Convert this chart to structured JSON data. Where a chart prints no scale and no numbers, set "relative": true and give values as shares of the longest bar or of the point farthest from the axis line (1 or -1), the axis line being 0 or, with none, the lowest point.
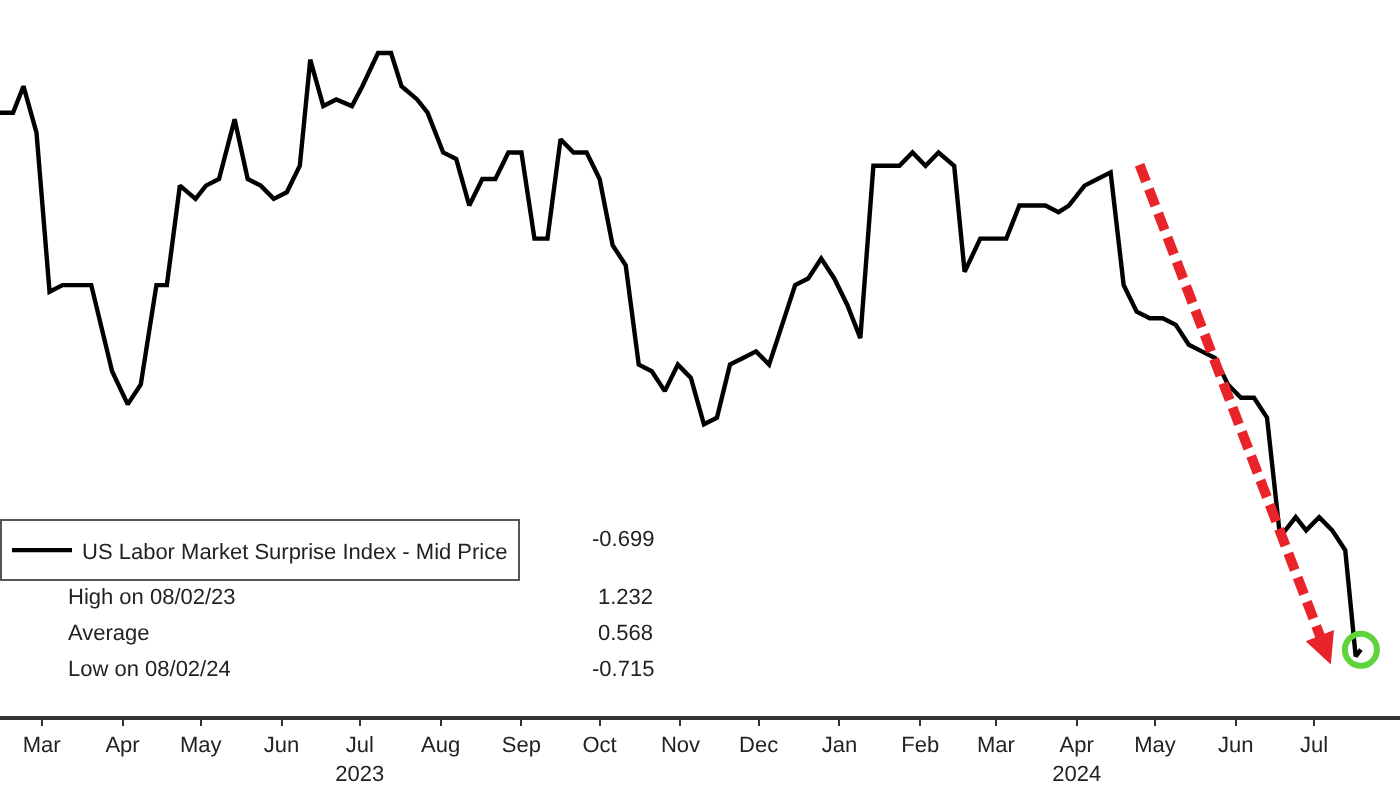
{
  "chart_data": {
    "type": "line",
    "relative": true,
    "legend": "bottom left",
    "line_style": "solid",
    "marker": "none",
    "xlim": [
      "2023-02-27",
      "2024-08-17"
    ],
    "xticks": [
      {
        "value": "2023-03-15",
        "label": "Mar"
      },
      {
        "value": "2023-04-15",
        "label": "Apr"
      },
      {
        "value": "2023-05-15",
        "label": "May"
      },
      {
        "value": "2023-06-15",
        "label": "Jun"
      },
      {
        "value": "2023-07-15",
        "label": "Jul\n2023"
      },
      {
        "value": "2023-08-15",
        "label": "Aug"
      },
      {
        "value": "2023-09-15",
        "label": "Sep"
      },
      {
        "value": "2023-10-15",
        "label": "Oct"
      },
      {
        "value": "2023-11-15",
        "label": "Nov"
      },
      {
        "value": "2023-12-15",
        "label": "Dec"
      },
      {
        "value": "2024-01-15",
        "label": "Jan"
      },
      {
        "value": "2024-02-15",
        "label": "Feb"
      },
      {
        "value": "2024-03-15",
        "label": "Mar"
      },
      {
        "value": "2024-04-15",
        "label": "Apr\n2024"
      },
      {
        "value": "2024-05-15",
        "label": "May"
      },
      {
        "value": "2024-06-15",
        "label": "Jun"
      },
      {
        "value": "2024-07-15",
        "label": "Jul"
      }
    ],
    "annotations": [
      "-0.699",
      "High on 08/02/23",
      "1.232",
      "Average",
      "0.568",
      "Low on 08/02/24",
      "-0.715"
    ],
    "series": [
      {
        "name": "US Labor Market Surprise Index - Mid Price",
        "color": "#000000",
        "x": [
          "2023-02-27",
          "2023-03-04",
          "2023-03-08",
          "2023-03-13",
          "2023-03-18",
          "2023-03-23",
          "2023-04-03",
          "2023-04-11",
          "2023-04-17",
          "2023-04-22",
          "2023-04-28",
          "2023-05-02",
          "2023-05-07",
          "2023-05-13",
          "2023-05-17",
          "2023-05-22",
          "2023-05-28",
          "2023-06-02",
          "2023-06-07",
          "2023-06-12",
          "2023-06-17",
          "2023-06-22",
          "2023-06-26",
          "2023-07-01",
          "2023-07-06",
          "2023-07-12",
          "2023-07-16",
          "2023-07-22",
          "2023-07-27",
          "2023-07-31",
          "2023-08-06",
          "2023-08-10",
          "2023-08-16",
          "2023-08-21",
          "2023-08-26",
          "2023-08-31",
          "2023-09-05",
          "2023-09-10",
          "2023-09-15",
          "2023-09-20",
          "2023-09-25",
          "2023-09-30",
          "2023-10-05",
          "2023-10-10",
          "2023-10-15",
          "2023-10-20",
          "2023-10-25",
          "2023-10-30",
          "2023-11-04",
          "2023-11-09",
          "2023-11-14",
          "2023-11-19",
          "2023-11-24",
          "2023-11-29",
          "2023-12-04",
          "2023-12-09",
          "2023-12-14",
          "2023-12-19",
          "2023-12-24",
          "2023-12-29",
          "2024-01-03",
          "2024-01-08",
          "2024-01-13",
          "2024-01-18",
          "2024-01-23",
          "2024-01-28",
          "2024-02-02",
          "2024-02-07",
          "2024-02-12",
          "2024-02-17",
          "2024-02-22",
          "2024-02-28",
          "2024-03-03",
          "2024-03-09",
          "2024-03-14",
          "2024-03-19",
          "2024-03-24",
          "2024-03-29",
          "2024-04-03",
          "2024-04-08",
          "2024-04-12",
          "2024-04-18",
          "2024-04-23",
          "2024-04-28",
          "2024-05-03",
          "2024-05-08",
          "2024-05-13",
          "2024-05-18",
          "2024-05-23",
          "2024-05-28",
          "2024-06-02",
          "2024-06-07",
          "2024-06-12",
          "2024-06-17",
          "2024-06-22",
          "2024-06-27",
          "2024-07-02",
          "2024-07-08",
          "2024-07-12",
          "2024-07-17",
          "2024-07-22",
          "2024-07-27",
          "2024-07-31",
          "2024-08-02"
        ],
        "values": [
          0.91,
          0.91,
          0.95,
          0.88,
          0.64,
          0.65,
          0.65,
          0.52,
          0.47,
          0.5,
          0.65,
          0.65,
          0.8,
          0.78,
          0.8,
          0.81,
          0.9,
          0.81,
          0.8,
          0.78,
          0.79,
          0.83,
          0.99,
          0.92,
          0.93,
          0.92,
          0.95,
          1.0,
          1.0,
          0.95,
          0.93,
          0.91,
          0.85,
          0.84,
          0.77,
          0.81,
          0.81,
          0.85,
          0.85,
          0.72,
          0.72,
          0.87,
          0.85,
          0.85,
          0.81,
          0.71,
          0.68,
          0.53,
          0.52,
          0.49,
          0.53,
          0.51,
          0.44,
          0.45,
          0.53,
          0.54,
          0.55,
          0.53,
          0.59,
          0.65,
          0.66,
          0.69,
          0.66,
          0.62,
          0.57,
          0.83,
          0.83,
          0.83,
          0.85,
          0.83,
          0.85,
          0.83,
          0.67,
          0.72,
          0.72,
          0.72,
          0.77,
          0.77,
          0.77,
          0.76,
          0.77,
          0.8,
          0.81,
          0.82,
          0.65,
          0.61,
          0.6,
          0.6,
          0.59,
          0.56,
          0.55,
          0.54,
          0.5,
          0.48,
          0.48,
          0.45,
          0.27,
          0.3,
          0.28,
          0.3,
          0.28,
          0.25,
          0.09,
          0.1
        ]
      },
      {
        "type": "scatter",
        "color": "#5ed33a",
        "marker": "circle",
        "x": [
          "2024-08-02"
        ],
        "values": [
          0.1
        ]
      }
    ]
  }
}
